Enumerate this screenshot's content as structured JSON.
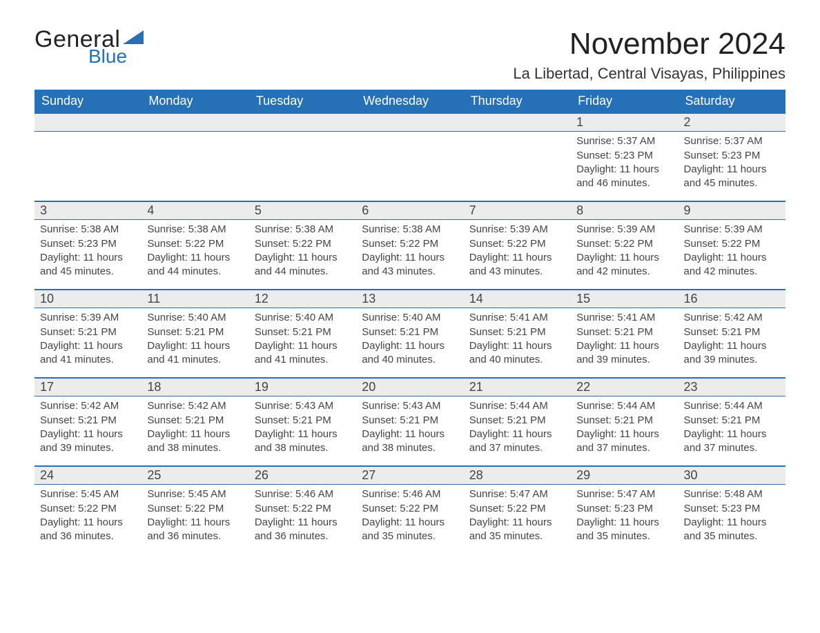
{
  "brand": {
    "word1": "General",
    "word2": "Blue"
  },
  "title": {
    "month": "November 2024",
    "location": "La Libertad, Central Visayas, Philippines"
  },
  "colors": {
    "header_blue": "#2570b6",
    "row_gray": "#ececec",
    "text": "#333333",
    "background": "#ffffff"
  },
  "typography": {
    "month_title_fontsize": 44,
    "location_fontsize": 22,
    "weekday_fontsize": 18,
    "daynum_fontsize": 18,
    "body_fontsize": 15
  },
  "calendar": {
    "weekdays": [
      "Sunday",
      "Monday",
      "Tuesday",
      "Wednesday",
      "Thursday",
      "Friday",
      "Saturday"
    ],
    "first_weekday_index": 5,
    "labels": {
      "sunrise": "Sunrise",
      "sunset": "Sunset",
      "daylight": "Daylight"
    },
    "days": [
      {
        "n": 1,
        "sunrise": "5:37 AM",
        "sunset": "5:23 PM",
        "daylight": "11 hours and 46 minutes."
      },
      {
        "n": 2,
        "sunrise": "5:37 AM",
        "sunset": "5:23 PM",
        "daylight": "11 hours and 45 minutes."
      },
      {
        "n": 3,
        "sunrise": "5:38 AM",
        "sunset": "5:23 PM",
        "daylight": "11 hours and 45 minutes."
      },
      {
        "n": 4,
        "sunrise": "5:38 AM",
        "sunset": "5:22 PM",
        "daylight": "11 hours and 44 minutes."
      },
      {
        "n": 5,
        "sunrise": "5:38 AM",
        "sunset": "5:22 PM",
        "daylight": "11 hours and 44 minutes."
      },
      {
        "n": 6,
        "sunrise": "5:38 AM",
        "sunset": "5:22 PM",
        "daylight": "11 hours and 43 minutes."
      },
      {
        "n": 7,
        "sunrise": "5:39 AM",
        "sunset": "5:22 PM",
        "daylight": "11 hours and 43 minutes."
      },
      {
        "n": 8,
        "sunrise": "5:39 AM",
        "sunset": "5:22 PM",
        "daylight": "11 hours and 42 minutes."
      },
      {
        "n": 9,
        "sunrise": "5:39 AM",
        "sunset": "5:22 PM",
        "daylight": "11 hours and 42 minutes."
      },
      {
        "n": 10,
        "sunrise": "5:39 AM",
        "sunset": "5:21 PM",
        "daylight": "11 hours and 41 minutes."
      },
      {
        "n": 11,
        "sunrise": "5:40 AM",
        "sunset": "5:21 PM",
        "daylight": "11 hours and 41 minutes."
      },
      {
        "n": 12,
        "sunrise": "5:40 AM",
        "sunset": "5:21 PM",
        "daylight": "11 hours and 41 minutes."
      },
      {
        "n": 13,
        "sunrise": "5:40 AM",
        "sunset": "5:21 PM",
        "daylight": "11 hours and 40 minutes."
      },
      {
        "n": 14,
        "sunrise": "5:41 AM",
        "sunset": "5:21 PM",
        "daylight": "11 hours and 40 minutes."
      },
      {
        "n": 15,
        "sunrise": "5:41 AM",
        "sunset": "5:21 PM",
        "daylight": "11 hours and 39 minutes."
      },
      {
        "n": 16,
        "sunrise": "5:42 AM",
        "sunset": "5:21 PM",
        "daylight": "11 hours and 39 minutes."
      },
      {
        "n": 17,
        "sunrise": "5:42 AM",
        "sunset": "5:21 PM",
        "daylight": "11 hours and 39 minutes."
      },
      {
        "n": 18,
        "sunrise": "5:42 AM",
        "sunset": "5:21 PM",
        "daylight": "11 hours and 38 minutes."
      },
      {
        "n": 19,
        "sunrise": "5:43 AM",
        "sunset": "5:21 PM",
        "daylight": "11 hours and 38 minutes."
      },
      {
        "n": 20,
        "sunrise": "5:43 AM",
        "sunset": "5:21 PM",
        "daylight": "11 hours and 38 minutes."
      },
      {
        "n": 21,
        "sunrise": "5:44 AM",
        "sunset": "5:21 PM",
        "daylight": "11 hours and 37 minutes."
      },
      {
        "n": 22,
        "sunrise": "5:44 AM",
        "sunset": "5:21 PM",
        "daylight": "11 hours and 37 minutes."
      },
      {
        "n": 23,
        "sunrise": "5:44 AM",
        "sunset": "5:21 PM",
        "daylight": "11 hours and 37 minutes."
      },
      {
        "n": 24,
        "sunrise": "5:45 AM",
        "sunset": "5:22 PM",
        "daylight": "11 hours and 36 minutes."
      },
      {
        "n": 25,
        "sunrise": "5:45 AM",
        "sunset": "5:22 PM",
        "daylight": "11 hours and 36 minutes."
      },
      {
        "n": 26,
        "sunrise": "5:46 AM",
        "sunset": "5:22 PM",
        "daylight": "11 hours and 36 minutes."
      },
      {
        "n": 27,
        "sunrise": "5:46 AM",
        "sunset": "5:22 PM",
        "daylight": "11 hours and 35 minutes."
      },
      {
        "n": 28,
        "sunrise": "5:47 AM",
        "sunset": "5:22 PM",
        "daylight": "11 hours and 35 minutes."
      },
      {
        "n": 29,
        "sunrise": "5:47 AM",
        "sunset": "5:23 PM",
        "daylight": "11 hours and 35 minutes."
      },
      {
        "n": 30,
        "sunrise": "5:48 AM",
        "sunset": "5:23 PM",
        "daylight": "11 hours and 35 minutes."
      }
    ]
  }
}
